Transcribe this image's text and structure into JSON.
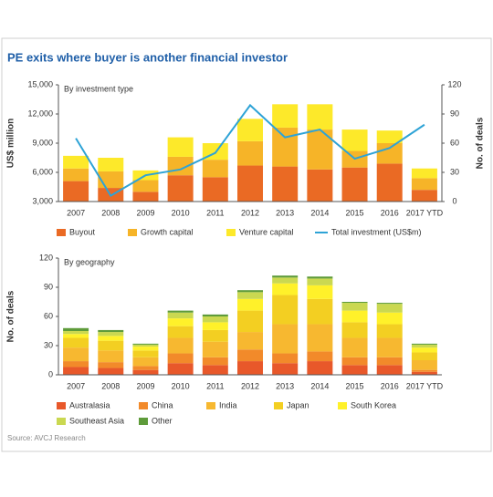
{
  "title": "PE exits where buyer is another financial investor",
  "source": "Source: AVCJ Research",
  "chart_data": [
    {
      "type": "bar",
      "subtitle": "By investment type",
      "y_label": "US$ million",
      "y2_label": "No. of deals",
      "categories": [
        "2007",
        "2008",
        "2009",
        "2010",
        "2011",
        "2012",
        "2013",
        "2014",
        "2015",
        "2016",
        "2017 YTD"
      ],
      "ylim": [
        3000,
        15000
      ],
      "yticks": [
        {
          "value": 3000,
          "label": "3,000"
        },
        {
          "value": 6000,
          "label": "6,000"
        },
        {
          "value": 9000,
          "label": "9,000"
        },
        {
          "value": 12000,
          "label": "12,000"
        },
        {
          "value": 15000,
          "label": "15,000"
        }
      ],
      "y2lim": [
        0,
        120
      ],
      "y2ticks": [
        0,
        30,
        60,
        90,
        120
      ],
      "series": [
        {
          "name": "Buyout",
          "color": "#ea6a24",
          "axis": "y2",
          "values": [
            21,
            14,
            10,
            27,
            25,
            37,
            36,
            33,
            35,
            39,
            12
          ]
        },
        {
          "name": "Growth capital",
          "color": "#f6b428",
          "axis": "y2",
          "values": [
            13,
            17,
            12,
            19,
            18,
            25,
            40,
            41,
            17,
            21,
            12
          ]
        },
        {
          "name": "Venture capital",
          "color": "#fde92a",
          "axis": "y2",
          "values": [
            13,
            14,
            10,
            20,
            17,
            23,
            24,
            26,
            22,
            13,
            10
          ]
        },
        {
          "name": "Total investment (US$m)",
          "color": "#2ea3d6",
          "type": "line",
          "values": [
            9500,
            3600,
            5700,
            6300,
            8000,
            12900,
            9600,
            10400,
            7400,
            8500,
            10900
          ]
        }
      ]
    },
    {
      "type": "bar",
      "subtitle": "By geography",
      "y_label": "No. of deals",
      "categories": [
        "2007",
        "2008",
        "2009",
        "2010",
        "2011",
        "2012",
        "2013",
        "2014",
        "2015",
        "2016",
        "2017 YTD"
      ],
      "ylim": [
        0,
        120
      ],
      "yticks": [
        0,
        30,
        60,
        90,
        120
      ],
      "series": [
        {
          "name": "Australasia",
          "color": "#e8582a",
          "values": [
            8,
            7,
            5,
            12,
            10,
            14,
            12,
            14,
            10,
            10,
            3
          ]
        },
        {
          "name": "China",
          "color": "#f28a2a",
          "values": [
            6,
            6,
            4,
            10,
            8,
            12,
            10,
            10,
            8,
            8,
            2
          ]
        },
        {
          "name": "India",
          "color": "#f7b830",
          "values": [
            14,
            12,
            9,
            16,
            16,
            18,
            30,
            28,
            20,
            20,
            10
          ]
        },
        {
          "name": "Japan",
          "color": "#f3cf22",
          "values": [
            10,
            10,
            7,
            12,
            12,
            22,
            30,
            26,
            16,
            14,
            8
          ]
        },
        {
          "name": "South Korea",
          "color": "#fff12a",
          "values": [
            4,
            5,
            4,
            8,
            8,
            12,
            12,
            14,
            12,
            12,
            5
          ]
        },
        {
          "name": "Southeast Asia",
          "color": "#cad851",
          "values": [
            3,
            4,
            2,
            6,
            6,
            7,
            6,
            7,
            8,
            9,
            3
          ]
        },
        {
          "name": "Other",
          "color": "#5e9b3a",
          "values": [
            3,
            2,
            1,
            2,
            2,
            2,
            2,
            2,
            1,
            1,
            1
          ]
        }
      ]
    }
  ]
}
